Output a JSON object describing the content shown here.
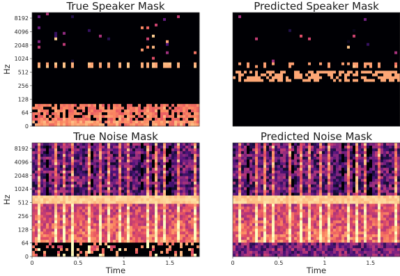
{
  "chart_data": [
    {
      "type": "heatmap",
      "title": "True Speaker Mask",
      "ylabel": "Hz",
      "xlabel": "",
      "y_ticks": [
        "8192",
        "4096",
        "2048",
        "1024",
        "512",
        "256",
        "128",
        "64",
        "0"
      ],
      "x_ticks": [],
      "y_scale": "log",
      "xlim": [
        0,
        1.82
      ],
      "colormap": "magma",
      "content": "speaker"
    },
    {
      "type": "heatmap",
      "title": "Predicted Speaker Mask",
      "ylabel": "",
      "xlabel": "",
      "y_ticks": [],
      "x_ticks": [],
      "y_scale": "log",
      "xlim": [
        0,
        1.82
      ],
      "colormap": "magma",
      "content": "speaker_pred"
    },
    {
      "type": "heatmap",
      "title": "True Noise Mask",
      "ylabel": "Hz",
      "xlabel": "Time",
      "y_ticks": [
        "8192",
        "4096",
        "2048",
        "1024",
        "512",
        "256",
        "128",
        "64",
        "0"
      ],
      "x_ticks": [
        "0",
        "0.5",
        "1",
        "1.5"
      ],
      "x_tick_values": [
        0,
        0.5,
        1,
        1.5
      ],
      "y_scale": "log",
      "xlim": [
        0,
        1.82
      ],
      "colormap": "magma",
      "content": "noise"
    },
    {
      "type": "heatmap",
      "title": "Predicted Noise Mask",
      "ylabel": "",
      "xlabel": "Time",
      "y_ticks": [],
      "x_ticks": [
        "0",
        "0.5",
        "1",
        "1.5"
      ],
      "x_tick_values": [
        0,
        0.5,
        1,
        1.5
      ],
      "y_scale": "log",
      "xlim": [
        0,
        1.82
      ],
      "colormap": "magma",
      "content": "noise_pred"
    }
  ]
}
